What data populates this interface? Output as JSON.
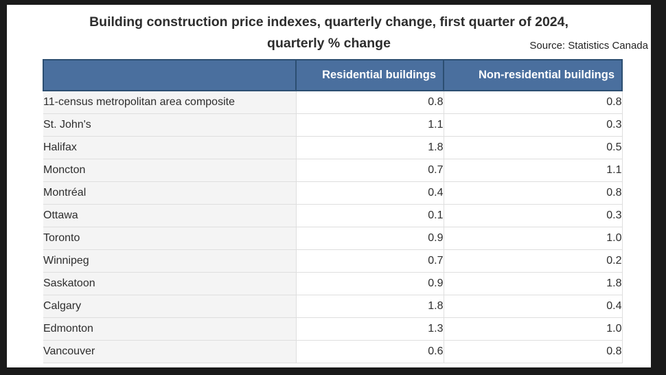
{
  "colors": {
    "page_frame": "#1a1a1a",
    "header_bg": "#4a6f9e",
    "header_border": "#2c4e71",
    "label_cell_bg": "#f4f4f4",
    "grid_line": "#dedede",
    "body_text": "#2d2d2d",
    "header_text": "#ffffff"
  },
  "header": {
    "title_line1": "Building construction price indexes, quarterly change, first quarter of 2024,",
    "title_line2": "quarterly % change",
    "source": "Source: Statistics Canada"
  },
  "chart_data": {
    "type": "table",
    "title": "Building construction price indexes, quarterly change, first quarter of 2024, quarterly % change",
    "source": "Source: Statistics Canada",
    "row_header_label": "",
    "categories": [
      "11-census metropolitan area composite",
      "St. John's",
      "Halifax",
      "Moncton",
      "Montréal",
      "Ottawa",
      "Toronto",
      "Winnipeg",
      "Saskatoon",
      "Calgary",
      "Edmonton",
      "Vancouver"
    ],
    "series": [
      {
        "name": "Residential buildings",
        "values": [
          "0.8",
          "1.1",
          "1.8",
          "0.7",
          "0.4",
          "0.1",
          "0.9",
          "0.7",
          "0.9",
          "1.8",
          "1.3",
          "0.6"
        ]
      },
      {
        "name": "Non-residential buildings",
        "values": [
          "0.8",
          "0.3",
          "0.5",
          "1.1",
          "0.8",
          "0.3",
          "1.0",
          "0.2",
          "1.8",
          "0.4",
          "1.0",
          "0.8"
        ]
      }
    ]
  }
}
